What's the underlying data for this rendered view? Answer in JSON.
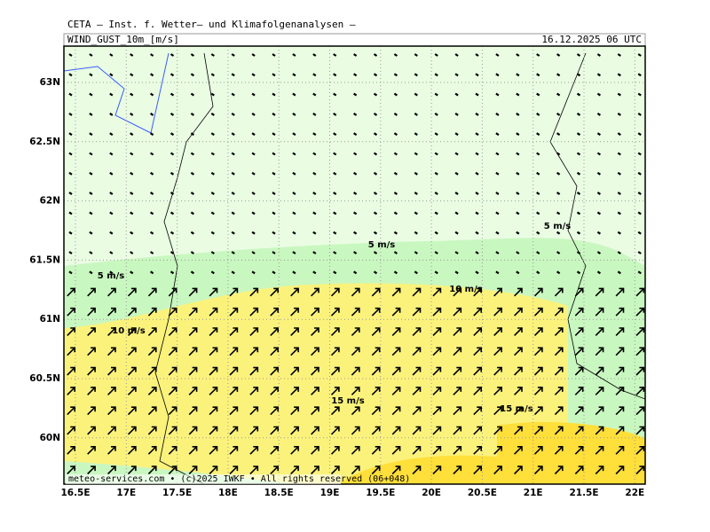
{
  "header": {
    "title": "CETA — Inst. f. Wetter— und Klimafolgenanalysen —",
    "parameter": "WIND_GUST_10m_[m/s]",
    "valid_time": "16.12.2025 06 UTC"
  },
  "map": {
    "lon_labels": [
      "16.5E",
      "17E",
      "17.5E",
      "18E",
      "18.5E",
      "19E",
      "19.5E",
      "20E",
      "20.5E",
      "21E",
      "21.5E",
      "22E"
    ],
    "lat_labels": [
      "63N",
      "62.5N",
      "62N",
      "61.5N",
      "61N",
      "60.5N",
      "60N"
    ],
    "contour_labels": [
      "5 m/s",
      "5 m/s",
      "5 m/s",
      "10 m/s",
      "10 m/s",
      "15 m/s",
      "15 m/s"
    ],
    "footer": "meteo-services.com • (c)2025 IWKF • All rights reserved (06+048)"
  }
}
